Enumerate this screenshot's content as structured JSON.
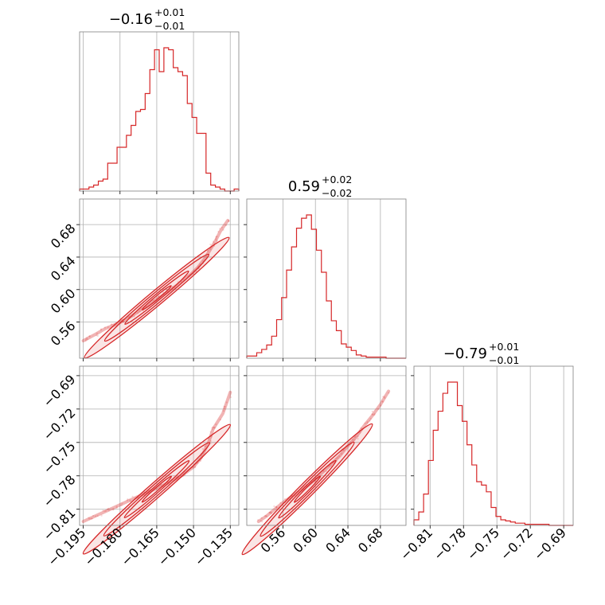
{
  "chart_data": {
    "type": "corner",
    "color": "#d62728",
    "grid": true,
    "parameters": [
      {
        "title_main": "−0.16",
        "title_sup": "+0.01",
        "title_sub": "−0.01",
        "range": [
          -0.1965,
          -0.1315
        ],
        "ticks": [
          -0.195,
          -0.18,
          -0.165,
          -0.15,
          -0.135
        ],
        "tick_labels": [
          "−0.195",
          "−0.180",
          "−0.165",
          "−0.150",
          "−0.135"
        ],
        "hist_counts": [
          1,
          1,
          2,
          3,
          5,
          6,
          14,
          14,
          22,
          22,
          28,
          33,
          40,
          41,
          49,
          61,
          71,
          60,
          72,
          71,
          62,
          60,
          58,
          44,
          37,
          29,
          29,
          9,
          3,
          2,
          1,
          0,
          0,
          1
        ]
      },
      {
        "title_main": "0.59",
        "title_sup": "+0.02",
        "title_sub": "−0.02",
        "range": [
          0.5155,
          0.7115
        ],
        "ticks": [
          0.56,
          0.6,
          0.64,
          0.68
        ],
        "tick_labels": [
          "0.56",
          "0.60",
          "0.64",
          "0.68"
        ],
        "hist_counts": [
          2,
          2,
          5,
          8,
          12,
          20,
          35,
          55,
          80,
          101,
          118,
          127,
          130,
          117,
          98,
          78,
          52,
          34,
          25,
          13,
          10,
          7,
          3,
          2,
          1,
          1,
          1,
          1,
          0,
          0,
          0,
          0
        ]
      },
      {
        "title_main": "−0.79",
        "title_sup": "+0.01",
        "title_sub": "−0.01",
        "range": [
          -0.8245,
          -0.6815
        ],
        "ticks": [
          -0.81,
          -0.78,
          -0.75,
          -0.72,
          -0.69
        ],
        "tick_labels": [
          "−0.81",
          "−0.78",
          "−0.75",
          "−0.72",
          "−0.69"
        ],
        "hist_counts": [
          5,
          12,
          28,
          58,
          85,
          102,
          118,
          128,
          128,
          107,
          93,
          72,
          54,
          39,
          36,
          30,
          16,
          8,
          5,
          4,
          3,
          2,
          2,
          1,
          1,
          1,
          1,
          1,
          0,
          0,
          0,
          0,
          0
        ]
      }
    ],
    "pairs": [
      {
        "x_param": 0,
        "y_param": 1,
        "contour_center": [
          -0.165,
          0.59
        ],
        "points": [
          [
            -0.195,
            0.537
          ],
          [
            -0.19,
            0.545
          ],
          [
            -0.186,
            0.552
          ],
          [
            -0.181,
            0.558
          ],
          [
            -0.176,
            0.566
          ],
          [
            -0.171,
            0.576
          ],
          [
            -0.166,
            0.586
          ],
          [
            -0.161,
            0.596
          ],
          [
            -0.156,
            0.607
          ],
          [
            -0.151,
            0.619
          ],
          [
            -0.148,
            0.628
          ],
          [
            -0.145,
            0.64
          ],
          [
            -0.143,
            0.65
          ],
          [
            -0.141,
            0.66
          ],
          [
            -0.139,
            0.672
          ],
          [
            -0.136,
            0.685
          ]
        ]
      },
      {
        "x_param": 0,
        "y_param": 2,
        "contour_center": [
          -0.165,
          -0.792
        ],
        "points": [
          [
            -0.195,
            -0.821
          ],
          [
            -0.19,
            -0.816
          ],
          [
            -0.185,
            -0.811
          ],
          [
            -0.18,
            -0.806
          ],
          [
            -0.175,
            -0.801
          ],
          [
            -0.17,
            -0.796
          ],
          [
            -0.165,
            -0.791
          ],
          [
            -0.16,
            -0.786
          ],
          [
            -0.155,
            -0.78
          ],
          [
            -0.15,
            -0.772
          ],
          [
            -0.147,
            -0.764
          ],
          [
            -0.144,
            -0.751
          ],
          [
            -0.142,
            -0.738
          ],
          [
            -0.138,
            -0.724
          ],
          [
            -0.135,
            -0.705
          ]
        ]
      },
      {
        "x_param": 1,
        "y_param": 2,
        "contour_center": [
          0.59,
          -0.792
        ],
        "points": [
          [
            0.53,
            -0.821
          ],
          [
            0.54,
            -0.816
          ],
          [
            0.55,
            -0.81
          ],
          [
            0.56,
            -0.804
          ],
          [
            0.57,
            -0.799
          ],
          [
            0.58,
            -0.794
          ],
          [
            0.59,
            -0.789
          ],
          [
            0.6,
            -0.783
          ],
          [
            0.61,
            -0.776
          ],
          [
            0.62,
            -0.769
          ],
          [
            0.63,
            -0.762
          ],
          [
            0.64,
            -0.753
          ],
          [
            0.65,
            -0.745
          ],
          [
            0.66,
            -0.735
          ],
          [
            0.67,
            -0.726
          ],
          [
            0.68,
            -0.716
          ],
          [
            0.69,
            -0.704
          ]
        ]
      }
    ]
  }
}
